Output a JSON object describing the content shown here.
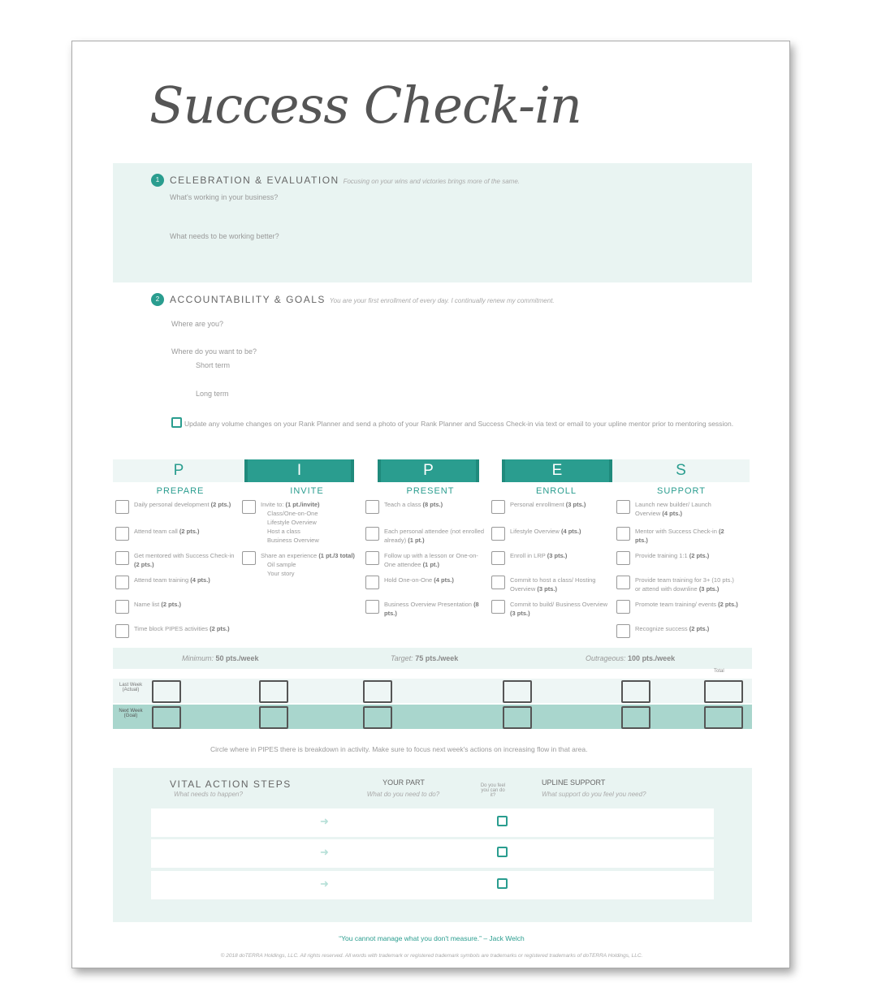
{
  "title": "Success Check-in",
  "section1": {
    "number": "1",
    "heading": "CELEBRATION & EVALUATION",
    "tagline": "Focusing on your wins and victories brings more of the same.",
    "questions": [
      "What's working in your business?",
      "What needs to be working better?"
    ]
  },
  "section2": {
    "number": "2",
    "heading": "ACCOUNTABILITY & GOALS",
    "tagline": "You are your first enrollment of every day. I continually renew my commitment.",
    "q1": "Where are you?",
    "q2": "Where do you want to be?",
    "short": "Short term",
    "long": "Long term",
    "update": "Update any volume changes on your Rank Planner and send a photo of your Rank Planner and Success Check-in via text or email to your upline mentor prior to mentoring session."
  },
  "pipes": {
    "letters": [
      "P",
      "I",
      "P",
      "E",
      "S"
    ],
    "columns": [
      {
        "name": "PREPARE",
        "items": [
          {
            "t": "Daily personal development",
            "p": "(2 pts.)"
          },
          {
            "t": "Attend team call",
            "p": "(2 pts.)"
          },
          {
            "t": "Get mentored with Success Check-in",
            "p": "(2 pts.)"
          },
          {
            "t": "Attend team training",
            "p": "(4 pts.)"
          },
          {
            "t": "Name list",
            "p": "(2 pts.)"
          },
          {
            "t": "Time block PIPES activities",
            "p": "(2 pts.)"
          }
        ]
      },
      {
        "name": "INVITE",
        "items": [
          {
            "t": "Invite to:",
            "p": "(1 pt./invite)",
            "subs": [
              "Class/One-on-One",
              "Lifestyle Overview",
              "Host a class",
              "Business Overview"
            ]
          },
          {
            "t": "Share an experience",
            "p": "(1 pt./3 total)",
            "subs": [
              "Oil sample",
              "Your story"
            ]
          }
        ]
      },
      {
        "name": "PRESENT",
        "items": [
          {
            "t": "Teach a class",
            "p": "(8 pts.)"
          },
          {
            "t": "Each personal attendee (not enrolled already)",
            "p": "(1 pt.)"
          },
          {
            "t": "Follow up with a lesson or One-on-One attendee",
            "p": "(1 pt.)"
          },
          {
            "t": "Hold One-on-One",
            "p": "(4 pts.)"
          },
          {
            "t": "Business Overview Presentation",
            "p": "(8 pts.)"
          }
        ]
      },
      {
        "name": "ENROLL",
        "items": [
          {
            "t": "Personal enrollment",
            "p": "(3 pts.)"
          },
          {
            "t": "Lifestyle Overview",
            "p": "(4 pts.)"
          },
          {
            "t": "Enroll in LRP",
            "p": "(3 pts.)"
          },
          {
            "t": "Commit to host a class/ Hosting Overview",
            "p": "(3 pts.)"
          },
          {
            "t": "Commit to build/ Business Overview",
            "p": "(3 pts.)"
          }
        ]
      },
      {
        "name": "SUPPORT",
        "items": [
          {
            "t": "Launch new builder/ Launch Overview",
            "p": "(4 pts.)"
          },
          {
            "t": "Mentor with Success Check-in",
            "p": "(2 pts.)"
          },
          {
            "t": "Provide training 1:1",
            "p": "(2 pts.)"
          },
          {
            "t": "Provide team training for 3+ (10 pts.) or attend with downline",
            "p": "(3 pts.)"
          },
          {
            "t": "Promote team training/ events",
            "p": "(2 pts.)"
          },
          {
            "t": "Recognize success",
            "p": "(2 pts.)"
          }
        ]
      }
    ]
  },
  "targets": [
    {
      "label": "Minimum:",
      "value": "50 pts./week"
    },
    {
      "label": "Target:",
      "value": "75 pts./week"
    },
    {
      "label": "Outrageous:",
      "value": "100 pts./week"
    }
  ],
  "score": {
    "total": "Total",
    "row1": "Last Week (Actual)",
    "row2": "Next Week (Goal)"
  },
  "circle_note": "Circle where in PIPES there is breakdown in activity. Make sure to focus next week's actions on increasing flow in that area.",
  "vital": {
    "heading": "VITAL ACTION STEPS",
    "heading_sub": "What needs to happen?",
    "part": "YOUR PART",
    "part_sub": "What do you need to do?",
    "feel": "Do you feel you can do it?",
    "upline": "UPLINE SUPPORT",
    "upline_sub": "What support do you feel you need?"
  },
  "quote": "“You cannot manage what you don't measure.”",
  "quote_author": "– Jack Welch",
  "copyright": "© 2018 doTERRA Holdings, LLC. All rights reserved. All words with trademark or registered trademark symbols are trademarks or registered trademarks of doTERRA Holdings, LLC.",
  "colors": {
    "accent": "#2a9d8f",
    "panel": "#e9f4f2",
    "goal_row": "#a9d6cd"
  }
}
